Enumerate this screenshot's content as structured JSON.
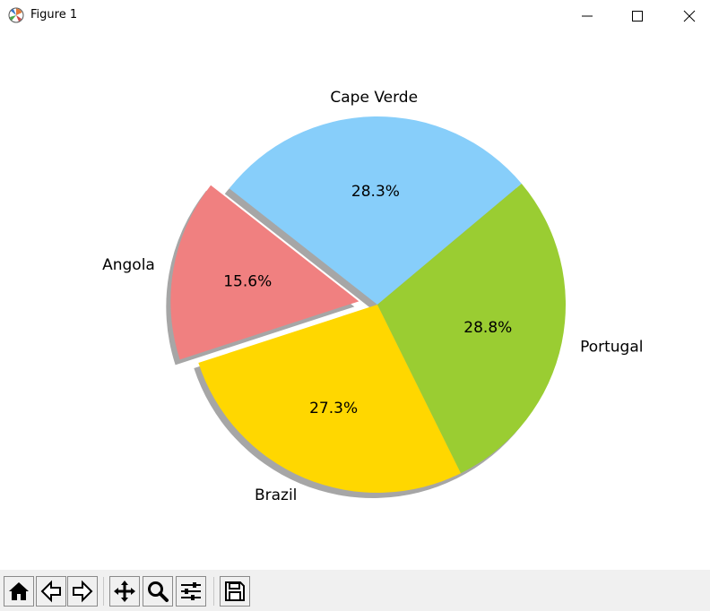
{
  "window": {
    "title": "Figure 1"
  },
  "toolbar": {
    "buttons": [
      {
        "name": "home-button",
        "icon": "home-icon"
      },
      {
        "name": "back-button",
        "icon": "back-arrow-icon"
      },
      {
        "name": "forward-button",
        "icon": "forward-arrow-icon"
      },
      {
        "name": "pan-button",
        "icon": "move-icon"
      },
      {
        "name": "zoom-button",
        "icon": "zoom-icon"
      },
      {
        "name": "configure-subplots-button",
        "icon": "sliders-icon"
      },
      {
        "name": "save-button",
        "icon": "save-icon"
      }
    ]
  },
  "chart_data": {
    "type": "pie",
    "title": "",
    "labels": [
      "Cape Verde",
      "Angola",
      "Brazil",
      "Portugal"
    ],
    "values": [
      28.3,
      15.6,
      27.3,
      28.8
    ],
    "pct_labels": [
      "28.3%",
      "15.6%",
      "27.3%",
      "28.8%"
    ],
    "colors": [
      "#87cefa",
      "#f08080",
      "#ffd700",
      "#9acd32"
    ],
    "explode": [
      0,
      0.1,
      0,
      0
    ],
    "shadow": true,
    "start_angle": 40,
    "direction": "counterclockwise"
  }
}
